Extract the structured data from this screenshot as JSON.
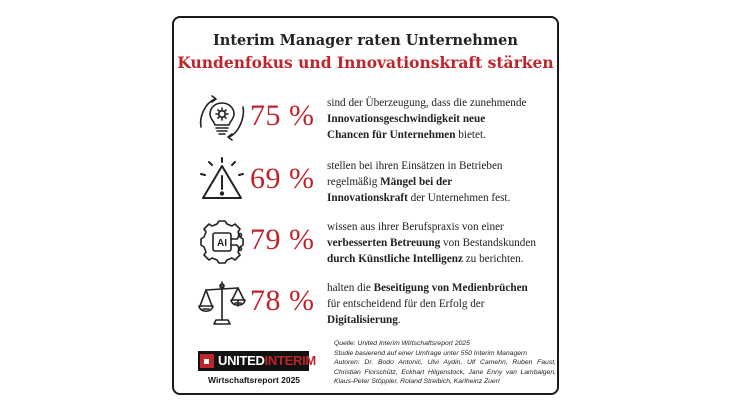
{
  "header": {
    "title": "Interim Manager raten Unternehmen",
    "subtitle": "Kundenfokus und Innovationskraft stärken"
  },
  "stats": [
    {
      "icon": "lightbulb-gear-icon",
      "percent": "75 %",
      "lines": [
        [
          {
            "t": "sind der Überzeugung, dass die zunehmende",
            "b": false
          }
        ],
        [
          {
            "t": "Innovationsgeschwindigkeit neue",
            "b": true
          }
        ],
        [
          {
            "t": "Chancen für Unternehmen",
            "b": true
          },
          {
            "t": " bietet.",
            "b": false
          }
        ]
      ]
    },
    {
      "icon": "warning-triangle-icon",
      "percent": "69 %",
      "lines": [
        [
          {
            "t": "stellen bei ihren Einsätzen in Betrieben",
            "b": false
          }
        ],
        [
          {
            "t": "regelmäßig ",
            "b": false
          },
          {
            "t": "Mängel bei der",
            "b": true
          }
        ],
        [
          {
            "t": "Innovationskraft",
            "b": true
          },
          {
            "t": " der Unternehmen fest.",
            "b": false
          }
        ]
      ]
    },
    {
      "icon": "ai-chip-gear-icon",
      "percent": "79 %",
      "lines": [
        [
          {
            "t": "wissen aus ihrer Berufspraxis von einer",
            "b": false
          }
        ],
        [
          {
            "t": "verbesserten Betreuung",
            "b": true
          },
          {
            "t": " von Bestandskunden",
            "b": false
          }
        ],
        [
          {
            "t": "durch Künstliche Intelligenz",
            "b": true
          },
          {
            "t": " zu berichten.",
            "b": false
          }
        ]
      ]
    },
    {
      "icon": "balance-scale-icon",
      "percent": "78 %",
      "lines": [
        [
          {
            "t": "halten die ",
            "b": false
          },
          {
            "t": "Beseitigung von Medienbrüchen",
            "b": true
          }
        ],
        [
          {
            "t": "für entscheidend für den Erfolg der",
            "b": false
          }
        ],
        [
          {
            "t": "Digitalisierung",
            "b": true
          },
          {
            "t": ".",
            "b": false
          }
        ]
      ]
    }
  ],
  "logo": {
    "part1": "UNITED",
    "part2": "INTERIM",
    "caption": "Wirtschaftsreport 2025"
  },
  "source": {
    "line1": "Quelle: United Interim Wirtschaftsreport 2025",
    "line2": "Studie basierend auf einer Umfrage unter 550 Interim Managern",
    "authors": "Autoren: Dr. Bodo Antonić, Ulvi Aydin, Ulf Camehn, Ruben Faust, Christian Florschütz, Eckhart Hilgenstock, Jane Enny van Lambalgen, Klaus-Peter Stöppler, Roland Streibich, Karlheinz Zuerl"
  },
  "colors": {
    "accent": "#c0242b",
    "text": "#222222",
    "border": "#1a1a1a"
  }
}
